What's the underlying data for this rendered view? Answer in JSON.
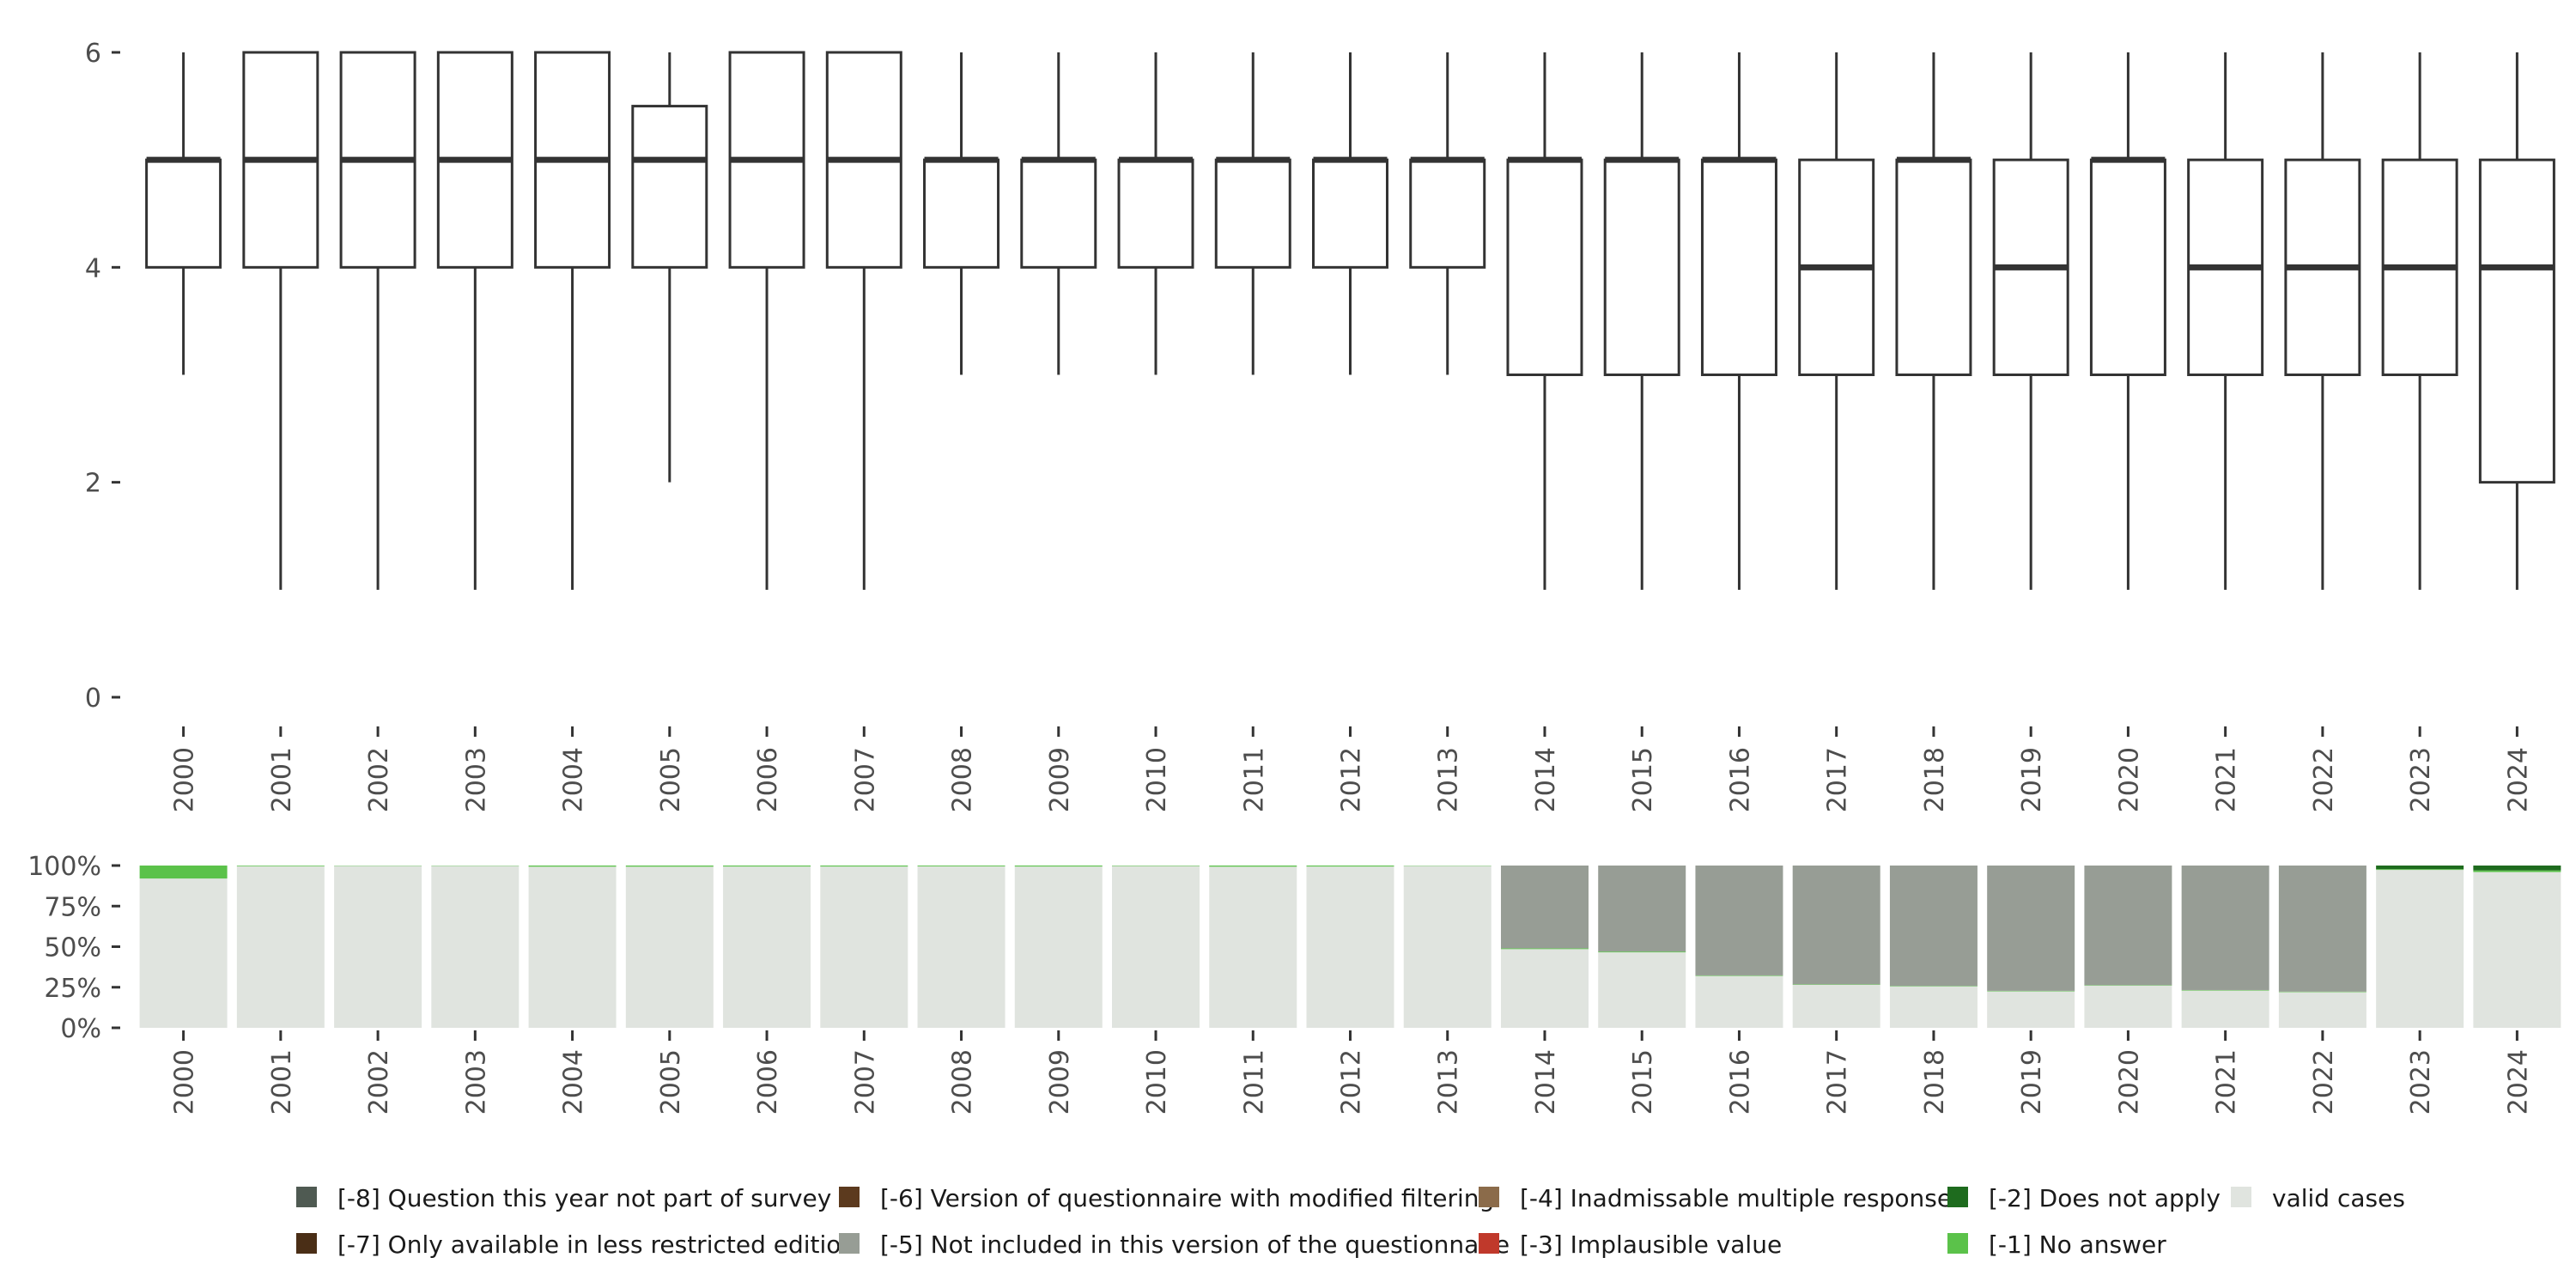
{
  "chart_data": [
    {
      "type": "boxplot",
      "title": "",
      "xlabel": "",
      "ylabel": "",
      "ylim": [
        0,
        6
      ],
      "yticks": [
        0,
        2,
        4,
        6
      ],
      "categories": [
        "2000",
        "2001",
        "2002",
        "2003",
        "2004",
        "2005",
        "2006",
        "2007",
        "2008",
        "2009",
        "2010",
        "2011",
        "2012",
        "2013",
        "2014",
        "2015",
        "2016",
        "2017",
        "2018",
        "2019",
        "2020",
        "2021",
        "2022",
        "2023",
        "2024"
      ],
      "boxes": [
        {
          "whisker_low": 3,
          "q1": 4,
          "median": 5,
          "q3": 5,
          "whisker_high": 6
        },
        {
          "whisker_low": 1,
          "q1": 4,
          "median": 5,
          "q3": 6,
          "whisker_high": 6
        },
        {
          "whisker_low": 1,
          "q1": 4,
          "median": 5,
          "q3": 6,
          "whisker_high": 6
        },
        {
          "whisker_low": 1,
          "q1": 4,
          "median": 5,
          "q3": 6,
          "whisker_high": 6
        },
        {
          "whisker_low": 1,
          "q1": 4,
          "median": 5,
          "q3": 6,
          "whisker_high": 6
        },
        {
          "whisker_low": 2,
          "q1": 4,
          "median": 5,
          "q3": 5.5,
          "whisker_high": 6
        },
        {
          "whisker_low": 1,
          "q1": 4,
          "median": 5,
          "q3": 6,
          "whisker_high": 6
        },
        {
          "whisker_low": 1,
          "q1": 4,
          "median": 5,
          "q3": 6,
          "whisker_high": 6
        },
        {
          "whisker_low": 3,
          "q1": 4,
          "median": 5,
          "q3": 5,
          "whisker_high": 6
        },
        {
          "whisker_low": 3,
          "q1": 4,
          "median": 5,
          "q3": 5,
          "whisker_high": 6
        },
        {
          "whisker_low": 3,
          "q1": 4,
          "median": 5,
          "q3": 5,
          "whisker_high": 6
        },
        {
          "whisker_low": 3,
          "q1": 4,
          "median": 5,
          "q3": 5,
          "whisker_high": 6
        },
        {
          "whisker_low": 3,
          "q1": 4,
          "median": 5,
          "q3": 5,
          "whisker_high": 6
        },
        {
          "whisker_low": 3,
          "q1": 4,
          "median": 5,
          "q3": 5,
          "whisker_high": 6
        },
        {
          "whisker_low": 1,
          "q1": 3,
          "median": 5,
          "q3": 5,
          "whisker_high": 6
        },
        {
          "whisker_low": 1,
          "q1": 3,
          "median": 5,
          "q3": 5,
          "whisker_high": 6
        },
        {
          "whisker_low": 1,
          "q1": 3,
          "median": 5,
          "q3": 5,
          "whisker_high": 6
        },
        {
          "whisker_low": 1,
          "q1": 3,
          "median": 4,
          "q3": 5,
          "whisker_high": 6
        },
        {
          "whisker_low": 1,
          "q1": 3,
          "median": 5,
          "q3": 5,
          "whisker_high": 6
        },
        {
          "whisker_low": 1,
          "q1": 3,
          "median": 4,
          "q3": 5,
          "whisker_high": 6
        },
        {
          "whisker_low": 1,
          "q1": 3,
          "median": 5,
          "q3": 5,
          "whisker_high": 6
        },
        {
          "whisker_low": 1,
          "q1": 3,
          "median": 4,
          "q3": 5,
          "whisker_high": 6
        },
        {
          "whisker_low": 1,
          "q1": 3,
          "median": 4,
          "q3": 5,
          "whisker_high": 6
        },
        {
          "whisker_low": 1,
          "q1": 3,
          "median": 4,
          "q3": 5,
          "whisker_high": 6
        },
        {
          "whisker_low": 1,
          "q1": 2,
          "median": 4,
          "q3": 5,
          "whisker_high": 6
        }
      ]
    },
    {
      "type": "bar",
      "stacked": true,
      "percent": true,
      "categories": [
        "2000",
        "2001",
        "2002",
        "2003",
        "2004",
        "2005",
        "2006",
        "2007",
        "2008",
        "2009",
        "2010",
        "2011",
        "2012",
        "2013",
        "2014",
        "2015",
        "2016",
        "2017",
        "2018",
        "2019",
        "2020",
        "2021",
        "2022",
        "2023",
        "2024"
      ],
      "ylim": [
        0,
        100
      ],
      "yticks": [
        "0%",
        "25%",
        "50%",
        "75%",
        "100%"
      ],
      "series": [
        {
          "name": "valid cases",
          "color": "#e0e4df",
          "values": [
            92,
            99.6,
            99.8,
            99.8,
            99.3,
            99.3,
            99.4,
            99.4,
            99.5,
            99.4,
            99.7,
            99.3,
            99.4,
            99.8,
            48.5,
            46.5,
            32,
            26.5,
            25.5,
            22.5,
            26,
            23,
            22,
            97.3,
            96
          ]
        },
        {
          "name": "[-1] No answer",
          "color": "#5bc24a",
          "values": [
            8,
            0.4,
            0.2,
            0.2,
            0.7,
            0.7,
            0.6,
            0.6,
            0.5,
            0.6,
            0.3,
            0.7,
            0.6,
            0.2,
            0.5,
            0.5,
            0.3,
            0.3,
            0.3,
            0.3,
            0.3,
            0.3,
            0.3,
            0.5,
            1
          ]
        },
        {
          "name": "[-2] Does not apply",
          "color": "#1e6b1e",
          "values": [
            0,
            0,
            0,
            0,
            0,
            0,
            0,
            0,
            0,
            0,
            0,
            0,
            0,
            0,
            0,
            0,
            0,
            0,
            0,
            0,
            0,
            0,
            0,
            2.2,
            3
          ]
        },
        {
          "name": "[-3] Implausible value",
          "color": "#c0392b",
          "values": [
            0,
            0,
            0,
            0,
            0,
            0,
            0,
            0,
            0,
            0,
            0,
            0,
            0,
            0,
            0,
            0,
            0,
            0,
            0,
            0,
            0,
            0,
            0,
            0,
            0
          ]
        },
        {
          "name": "[-4] Inadmissable multiple response",
          "color": "#8b6b4a",
          "values": [
            0,
            0,
            0,
            0,
            0,
            0,
            0,
            0,
            0,
            0,
            0,
            0,
            0,
            0,
            0,
            0,
            0,
            0,
            0,
            0,
            0,
            0,
            0,
            0,
            0
          ]
        },
        {
          "name": "[-5] Not included in this version of the questionnaire",
          "color": "#979d95",
          "values": [
            0,
            0,
            0,
            0,
            0,
            0,
            0,
            0,
            0,
            0,
            0,
            0,
            0,
            0,
            51,
            53,
            67.7,
            73.2,
            74.2,
            77.2,
            73.7,
            76.7,
            77.7,
            0,
            0
          ]
        },
        {
          "name": "[-6] Version of questionnaire with modified filtering",
          "color": "#5c3a1e",
          "values": [
            0,
            0,
            0,
            0,
            0,
            0,
            0,
            0,
            0,
            0,
            0,
            0,
            0,
            0,
            0,
            0,
            0,
            0,
            0,
            0,
            0,
            0,
            0,
            0,
            0
          ]
        },
        {
          "name": "[-7] Only available in less restricted edition",
          "color": "#4a2e16",
          "values": [
            0,
            0,
            0,
            0,
            0,
            0,
            0,
            0,
            0,
            0,
            0,
            0,
            0,
            0,
            0,
            0,
            0,
            0,
            0,
            0,
            0,
            0,
            0,
            0,
            0
          ]
        },
        {
          "name": "[-8] Question this year not part of survey",
          "color": "#4f5a52",
          "values": [
            0,
            0,
            0,
            0,
            0,
            0,
            0,
            0,
            0,
            0,
            0,
            0,
            0,
            0,
            0,
            0,
            0,
            0,
            0,
            0,
            0,
            0,
            0,
            0,
            0
          ]
        }
      ],
      "legend": [
        {
          "label": "[-8] Question this year not part of survey",
          "color": "#4f5a52"
        },
        {
          "label": "[-6] Version of questionnaire with modified filtering",
          "color": "#5c3a1e"
        },
        {
          "label": "[-4] Inadmissable multiple response",
          "color": "#8b6b4a"
        },
        {
          "label": "[-2] Does not apply",
          "color": "#1e6b1e"
        },
        {
          "label": "valid cases",
          "color": "#e0e4df"
        },
        {
          "label": "[-7] Only available in less restricted edition",
          "color": "#4a2e16"
        },
        {
          "label": "[-5] Not included in this version of the questionnaire",
          "color": "#979d95"
        },
        {
          "label": "[-3] Implausible value",
          "color": "#c0392b"
        },
        {
          "label": "[-1] No answer",
          "color": "#5bc24a"
        }
      ],
      "legend_position": "bottom"
    }
  ]
}
